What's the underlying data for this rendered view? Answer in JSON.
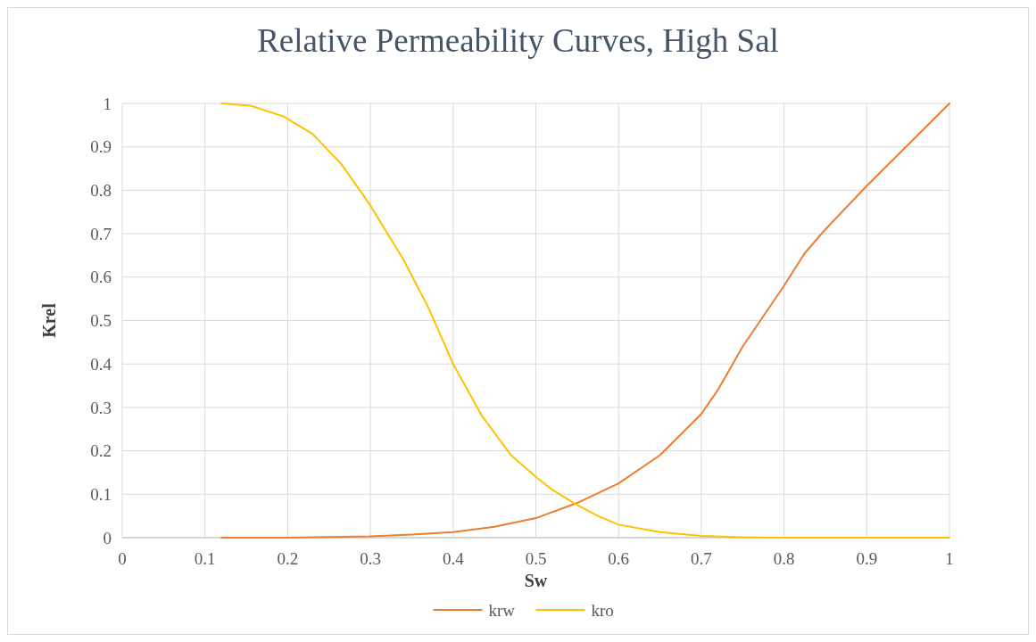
{
  "chart_data": {
    "type": "line",
    "title": "Relative Permeability Curves, High Sal",
    "xlabel": "Sw",
    "ylabel": "Krel",
    "xlim": [
      0,
      1
    ],
    "xticks": [
      0,
      0.1,
      0.2,
      0.3,
      0.4,
      0.5,
      0.6,
      0.7,
      0.8,
      0.9,
      1
    ],
    "ylim": [
      0,
      1
    ],
    "yticks": [
      0,
      0.1,
      0.2,
      0.3,
      0.4,
      0.5,
      0.6,
      0.7,
      0.8,
      0.9,
      1
    ],
    "grid": true,
    "legend": "bottom",
    "marker": "none",
    "line_style": "solid",
    "series": [
      {
        "name": "krw",
        "color": "#ed7d31",
        "x": [
          0.12,
          0.2,
          0.3,
          0.35,
          0.4,
          0.45,
          0.5,
          0.55,
          0.6,
          0.65,
          0.7,
          0.72,
          0.75,
          0.8,
          0.825,
          0.85,
          0.9,
          0.95,
          1
        ],
        "values": [
          0,
          0,
          0.003,
          0.007,
          0.013,
          0.025,
          0.045,
          0.08,
          0.125,
          0.19,
          0.285,
          0.34,
          0.44,
          0.58,
          0.655,
          0.71,
          0.81,
          0.905,
          1
        ]
      },
      {
        "name": "kro",
        "color": "#ffc000",
        "x": [
          0.12,
          0.155,
          0.195,
          0.23,
          0.265,
          0.3,
          0.34,
          0.37,
          0.4,
          0.435,
          0.47,
          0.5,
          0.52,
          0.55,
          0.575,
          0.6,
          0.65,
          0.7,
          0.75,
          0.8,
          1
        ],
        "values": [
          1,
          0.995,
          0.97,
          0.93,
          0.86,
          0.765,
          0.64,
          0.53,
          0.4,
          0.28,
          0.19,
          0.14,
          0.11,
          0.075,
          0.05,
          0.03,
          0.013,
          0.004,
          0.001,
          0,
          0
        ]
      }
    ]
  }
}
